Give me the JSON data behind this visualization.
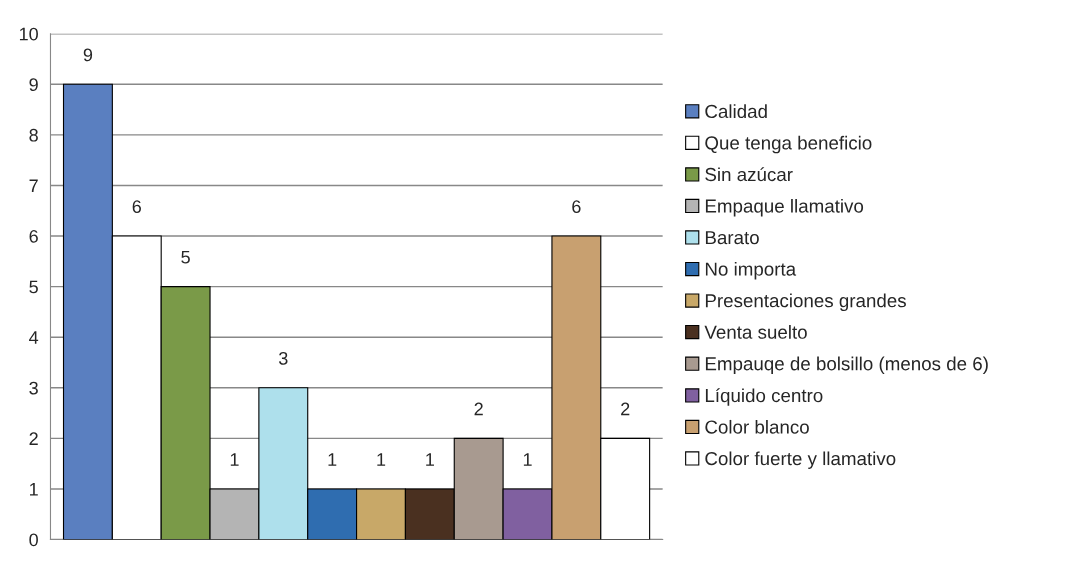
{
  "chart_data": {
    "type": "bar",
    "categories": [
      null
    ],
    "series": [
      {
        "name": "Calidad",
        "color": "#5a7fc0",
        "values": [
          9
        ]
      },
      {
        "name": "Que tenga beneficio",
        "color": "#ffffff",
        "values": [
          6
        ]
      },
      {
        "name": "Sin azúcar",
        "color": "#7a9a48",
        "values": [
          5
        ]
      },
      {
        "name": "Empaque llamativo",
        "color": "#b4b4b4",
        "values": [
          1
        ]
      },
      {
        "name": "Barato",
        "color": "#aee0ec",
        "values": [
          3
        ]
      },
      {
        "name": "No importa",
        "color": "#2f6db0",
        "values": [
          1
        ]
      },
      {
        "name": "Presentaciones grandes",
        "color": "#c8a868",
        "values": [
          1
        ]
      },
      {
        "name": "Venta suelto",
        "color": "#4a3020",
        "values": [
          1
        ]
      },
      {
        "name": "Empauqe de bolsillo (menos de 6)",
        "color": "#a89a90",
        "values": [
          2
        ]
      },
      {
        "name": "Líquido centro",
        "color": "#8060a0",
        "values": [
          1
        ]
      },
      {
        "name": "Color blanco",
        "color": "#c8a070",
        "values": [
          6
        ]
      },
      {
        "name": "Color fuerte y llamativo",
        "color": "#ffffff",
        "values": [
          2
        ]
      }
    ],
    "ylim": [
      0,
      10
    ],
    "yticks": [
      0,
      1,
      2,
      3,
      4,
      5,
      6,
      7,
      8,
      9,
      10
    ],
    "grid": "y",
    "legend": "right",
    "data_labels": true
  }
}
